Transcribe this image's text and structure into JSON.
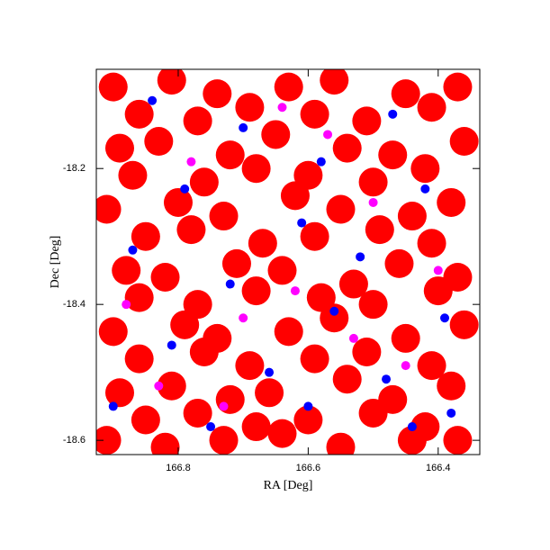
{
  "chart_data": {
    "type": "scatter",
    "x_label": "RA [Deg]",
    "y_label": "Dec [Deg]",
    "xlim": [
      166.926,
      166.336
    ],
    "ylim": [
      -18.621,
      -18.054
    ],
    "xticks": [
      166.8,
      166.6,
      166.4
    ],
    "yticks": [
      -18.2,
      -18.4,
      -18.6
    ],
    "grid": false,
    "series": [
      {
        "color": "#ff0000",
        "marker_radius": 16,
        "x": [
          166.9,
          166.81,
          166.74,
          166.63,
          166.56,
          166.45,
          166.37,
          166.89,
          166.83,
          166.72,
          166.65,
          166.54,
          166.47,
          166.36,
          166.91,
          166.8,
          166.73,
          166.62,
          166.55,
          166.44,
          166.38,
          166.88,
          166.82,
          166.71,
          166.64,
          166.53,
          166.46,
          166.37,
          166.9,
          166.79,
          166.74,
          166.63,
          166.56,
          166.45,
          166.36,
          166.89,
          166.81,
          166.72,
          166.66,
          166.54,
          166.47,
          166.38,
          166.91,
          166.82,
          166.73,
          166.64,
          166.55,
          166.44,
          166.37,
          166.86,
          166.77,
          166.69,
          166.59,
          166.51,
          166.41,
          166.87,
          166.76,
          166.68,
          166.6,
          166.5,
          166.42,
          166.85,
          166.78,
          166.67,
          166.59,
          166.49,
          166.41,
          166.86,
          166.77,
          166.68,
          166.58,
          166.5,
          166.4,
          166.86,
          166.76,
          166.69,
          166.59,
          166.51,
          166.41,
          166.85,
          166.77,
          166.68,
          166.6,
          166.5,
          166.42
        ],
        "y": [
          -18.08,
          -18.07,
          -18.09,
          -18.08,
          -18.07,
          -18.09,
          -18.08,
          -18.17,
          -18.16,
          -18.18,
          -18.15,
          -18.17,
          -18.18,
          -18.16,
          -18.26,
          -18.25,
          -18.27,
          -18.24,
          -18.26,
          -18.27,
          -18.25,
          -18.35,
          -18.36,
          -18.34,
          -18.35,
          -18.37,
          -18.34,
          -18.36,
          -18.44,
          -18.43,
          -18.45,
          -18.44,
          -18.42,
          -18.45,
          -18.43,
          -18.53,
          -18.52,
          -18.54,
          -18.53,
          -18.51,
          -18.54,
          -18.52,
          -18.6,
          -18.61,
          -18.6,
          -18.59,
          -18.61,
          -18.6,
          -18.6,
          -18.12,
          -18.13,
          -18.11,
          -18.12,
          -18.13,
          -18.11,
          -18.21,
          -18.22,
          -18.2,
          -18.21,
          -18.22,
          -18.2,
          -18.3,
          -18.29,
          -18.31,
          -18.3,
          -18.29,
          -18.31,
          -18.39,
          -18.4,
          -18.38,
          -18.39,
          -18.4,
          -18.38,
          -18.48,
          -18.47,
          -18.49,
          -18.48,
          -18.47,
          -18.49,
          -18.57,
          -18.56,
          -18.58,
          -18.57,
          -18.56,
          -18.58
        ]
      },
      {
        "color": "#0000ff",
        "marker_radius": 5,
        "x": [
          166.84,
          166.7,
          166.58,
          166.47,
          166.79,
          166.61,
          166.52,
          166.42,
          166.87,
          166.72,
          166.56,
          166.39,
          166.81,
          166.66,
          166.48,
          166.38,
          166.9,
          166.75,
          166.6,
          166.44
        ],
        "y": [
          -18.1,
          -18.14,
          -18.19,
          -18.12,
          -18.23,
          -18.28,
          -18.33,
          -18.23,
          -18.32,
          -18.37,
          -18.41,
          -18.42,
          -18.46,
          -18.5,
          -18.51,
          -18.56,
          -18.55,
          -18.58,
          -18.55,
          -18.58
        ]
      },
      {
        "color": "#ff00ff",
        "marker_radius": 5,
        "x": [
          166.78,
          166.64,
          166.5,
          166.88,
          166.7,
          166.53,
          166.4,
          166.83,
          166.62,
          166.45,
          166.73,
          166.57
        ],
        "y": [
          -18.19,
          -18.11,
          -18.25,
          -18.4,
          -18.42,
          -18.45,
          -18.35,
          -18.52,
          -18.38,
          -18.49,
          -18.55,
          -18.15
        ]
      }
    ]
  }
}
